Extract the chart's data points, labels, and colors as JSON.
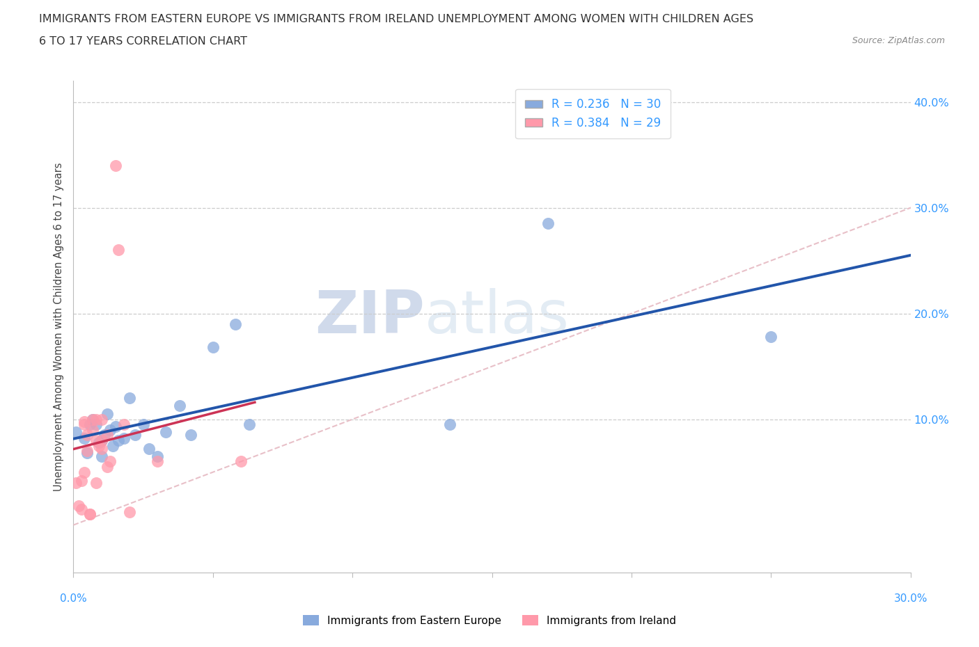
{
  "title_line1": "IMMIGRANTS FROM EASTERN EUROPE VS IMMIGRANTS FROM IRELAND UNEMPLOYMENT AMONG WOMEN WITH CHILDREN AGES",
  "title_line2": "6 TO 17 YEARS CORRELATION CHART",
  "source": "Source: ZipAtlas.com",
  "ylabel": "Unemployment Among Women with Children Ages 6 to 17 years",
  "r_eastern": 0.236,
  "n_eastern": 30,
  "r_ireland": 0.384,
  "n_ireland": 29,
  "color_eastern": "#88aadd",
  "color_ireland": "#ff99aa",
  "trendline_eastern": "#2255aa",
  "trendline_ireland": "#cc3355",
  "diagonal_color": "#e8c0c8",
  "watermark_zip": "ZIP",
  "watermark_atlas": "atlas",
  "eastern_x": [
    0.001,
    0.004,
    0.005,
    0.006,
    0.007,
    0.008,
    0.009,
    0.01,
    0.01,
    0.011,
    0.012,
    0.013,
    0.014,
    0.015,
    0.016,
    0.018,
    0.02,
    0.022,
    0.025,
    0.027,
    0.03,
    0.033,
    0.038,
    0.042,
    0.05,
    0.058,
    0.063,
    0.135,
    0.17,
    0.25
  ],
  "eastern_y": [
    0.088,
    0.082,
    0.068,
    0.095,
    0.1,
    0.095,
    0.078,
    0.08,
    0.065,
    0.085,
    0.105,
    0.09,
    0.075,
    0.093,
    0.08,
    0.082,
    0.12,
    0.085,
    0.095,
    0.072,
    0.065,
    0.088,
    0.113,
    0.085,
    0.168,
    0.19,
    0.095,
    0.095,
    0.285,
    0.178
  ],
  "ireland_x": [
    0.001,
    0.002,
    0.003,
    0.003,
    0.004,
    0.004,
    0.004,
    0.005,
    0.005,
    0.006,
    0.006,
    0.007,
    0.007,
    0.008,
    0.008,
    0.008,
    0.009,
    0.01,
    0.01,
    0.01,
    0.012,
    0.012,
    0.013,
    0.015,
    0.016,
    0.018,
    0.02,
    0.03,
    0.06
  ],
  "ireland_y": [
    0.04,
    0.018,
    0.042,
    0.015,
    0.098,
    0.095,
    0.05,
    0.085,
    0.07,
    0.01,
    0.01,
    0.1,
    0.09,
    0.08,
    0.1,
    0.04,
    0.075,
    0.1,
    0.08,
    0.072,
    0.055,
    0.085,
    0.06,
    0.34,
    0.26,
    0.095,
    0.012,
    0.06,
    0.06
  ],
  "xlim": [
    0,
    0.3
  ],
  "ylim": [
    -0.045,
    0.42
  ],
  "ytick_vals": [
    0.1,
    0.2,
    0.3,
    0.4
  ],
  "xtick_vals": [
    0.0,
    0.05,
    0.1,
    0.15,
    0.2,
    0.25,
    0.3
  ]
}
